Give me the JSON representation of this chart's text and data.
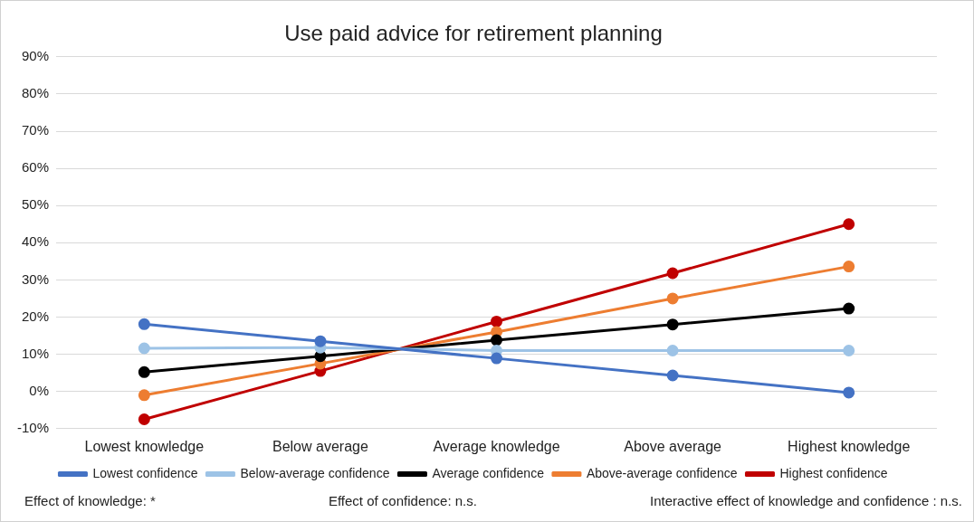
{
  "chart_data": {
    "type": "line",
    "title": "Use paid advice for retirement planning",
    "categories": [
      "Lowest knowledge",
      "Below average",
      "Average knowledge",
      "Above average",
      "Highest knowledge"
    ],
    "series": [
      {
        "name": "Lowest confidence",
        "color": "#4472c4",
        "values": [
          18.1,
          13.5,
          8.9,
          4.3,
          -0.3
        ]
      },
      {
        "name": "Below-average confidence",
        "color": "#9dc3e6",
        "values": [
          11.6,
          11.8,
          11.0,
          11.0,
          11.0
        ]
      },
      {
        "name": "Average confidence",
        "color": "#000000",
        "values": [
          5.2,
          9.5,
          13.8,
          18.0,
          22.3
        ]
      },
      {
        "name": "Above-average confidence",
        "color": "#ed7d31",
        "values": [
          -1.0,
          7.5,
          16.0,
          25.0,
          33.6
        ]
      },
      {
        "name": "Highest confidence",
        "color": "#c00000",
        "values": [
          -7.5,
          5.5,
          18.8,
          31.8,
          45.0
        ]
      }
    ],
    "ylim": [
      -10,
      90
    ],
    "yticks": [
      {
        "value": -10,
        "label": "-10%"
      },
      {
        "value": 0,
        "label": "0%"
      },
      {
        "value": 10,
        "label": "10%"
      },
      {
        "value": 20,
        "label": "20%"
      },
      {
        "value": 30,
        "label": "30%"
      },
      {
        "value": 40,
        "label": "40%"
      },
      {
        "value": 50,
        "label": "50%"
      },
      {
        "value": 60,
        "label": "60%"
      },
      {
        "value": 70,
        "label": "70%"
      },
      {
        "value": 80,
        "label": "80%"
      },
      {
        "value": 90,
        "label": "90%"
      }
    ],
    "grid": "y",
    "legend": "bottom",
    "marker": "circle",
    "line_style": "solid",
    "annotations": [
      "Effect of knowledge: *",
      "Effect of confidence: n.s.",
      "Interactive effect of knowledge and confidence : n.s."
    ]
  }
}
